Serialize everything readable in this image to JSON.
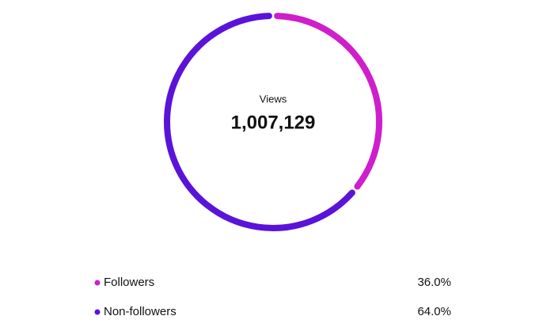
{
  "chart_data": {
    "type": "donut",
    "center_label": "Views",
    "center_value": "1,007,129",
    "categories": [
      "Followers",
      "Non-followers"
    ],
    "values": [
      36.0,
      64.0
    ],
    "value_labels": [
      "36.0%",
      "64.0%"
    ],
    "colors": [
      "#cf1ecb",
      "#5a13d8"
    ]
  }
}
